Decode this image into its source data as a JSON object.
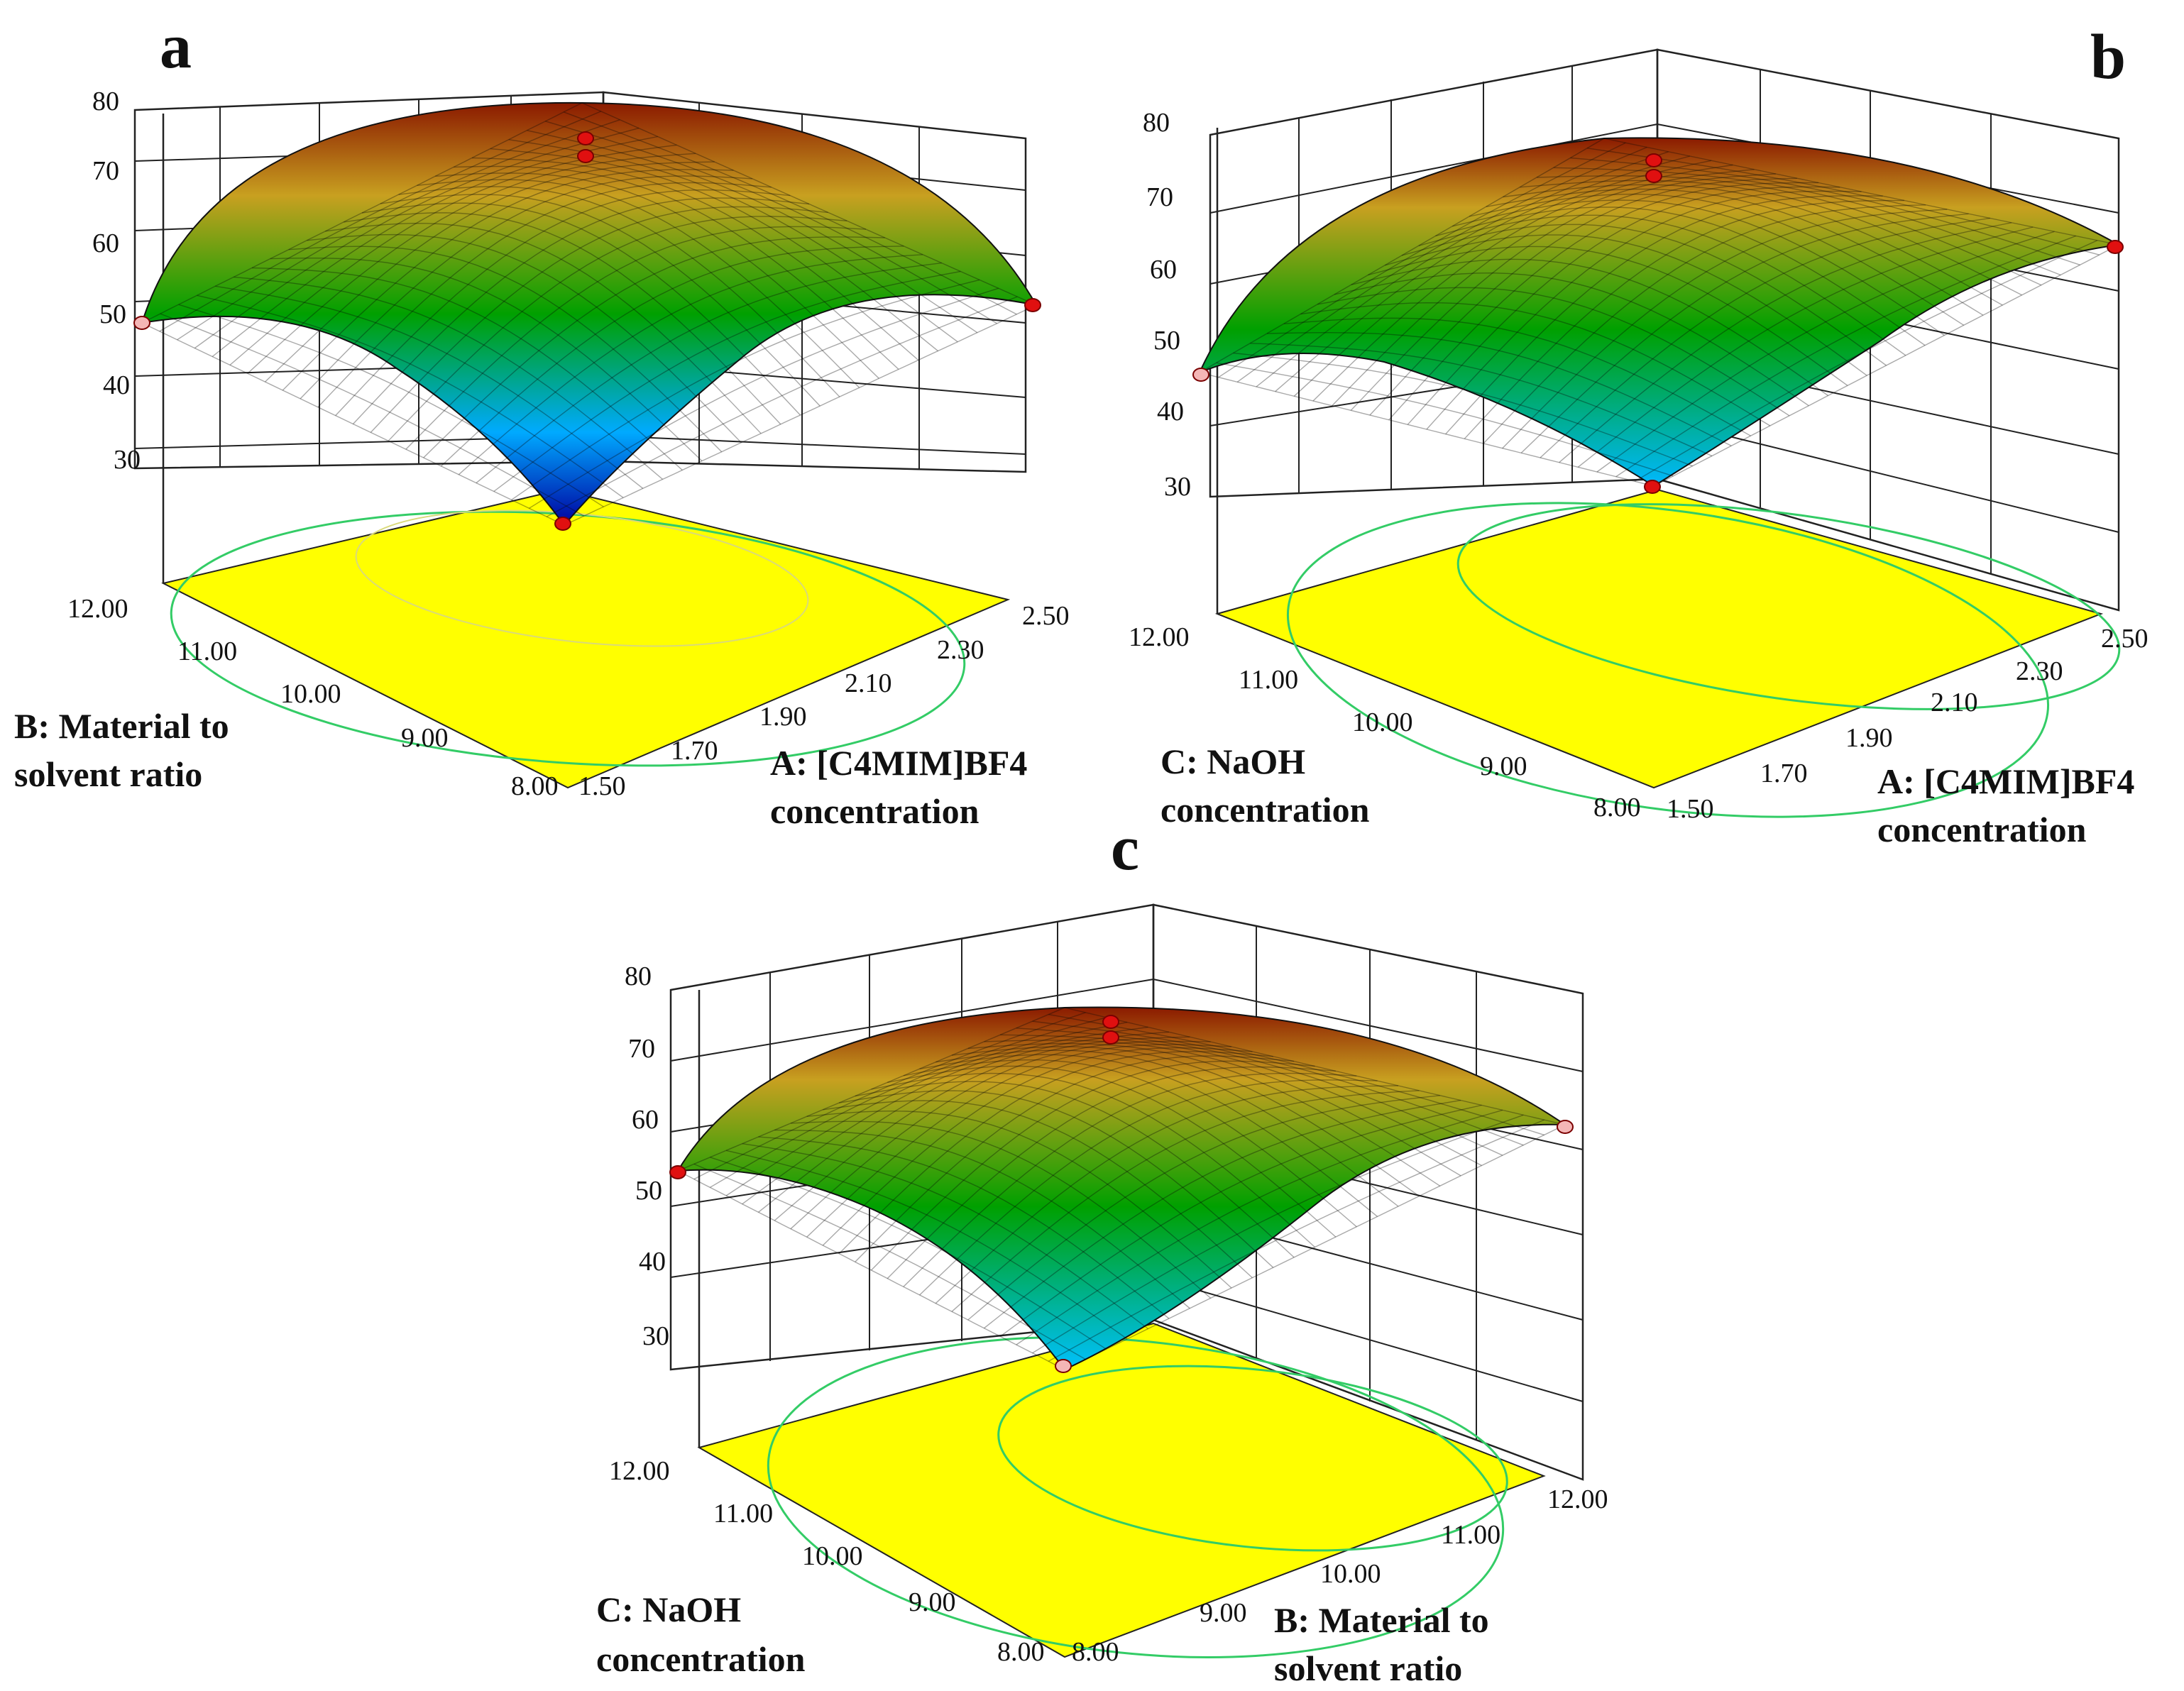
{
  "figure": {
    "description_type": "3D response surface plots with contour projections",
    "z_ticks": [
      "80",
      "70",
      "60",
      "50",
      "40",
      "30"
    ]
  },
  "chart_data": [
    {
      "type": "surface",
      "panel": "a",
      "zlim": [
        30,
        80
      ],
      "x_axis": {
        "label_line1": "A: [C4MIM]BF4",
        "label_line2": "concentration",
        "ticks": [
          "1.50",
          "1.70",
          "1.90",
          "2.10",
          "2.30",
          "2.50"
        ],
        "range": [
          1.5,
          2.5
        ]
      },
      "y_axis": {
        "label_line1": "B: Material to",
        "label_line2": "solvent ratio",
        "ticks": [
          "8.00",
          "9.00",
          "10.00",
          "11.00",
          "12.00"
        ],
        "range": [
          8,
          12
        ]
      },
      "z_ticks": [
        "30",
        "40",
        "50",
        "60",
        "70",
        "80"
      ],
      "surface_samples": {
        "front_corner": 28,
        "left_corner": 50,
        "right_corner": 50,
        "back_corner": 52,
        "peak": 73
      },
      "design_points": [
        {
          "x": 2.0,
          "y": 10.0,
          "z": 75,
          "color": "#e01010"
        },
        {
          "x": 2.0,
          "y": 10.0,
          "z": 73,
          "color": "#e01010"
        },
        {
          "x": 1.5,
          "y": 8.0,
          "z": 28,
          "color": "#e01010"
        },
        {
          "x": 1.5,
          "y": 12.0,
          "z": 49,
          "color": "#f4b6b6"
        },
        {
          "x": 2.5,
          "y": 8.0,
          "z": 50,
          "color": "#e01010"
        }
      ]
    },
    {
      "type": "surface",
      "panel": "b",
      "zlim": [
        30,
        80
      ],
      "x_axis": {
        "label_line1": "A: [C4MIM]BF4",
        "label_line2": "concentration",
        "ticks": [
          "1.50",
          "1.70",
          "1.90",
          "2.10",
          "2.30",
          "2.50"
        ],
        "range": [
          1.5,
          2.5
        ]
      },
      "y_axis": {
        "label_line1": "C: NaOH",
        "label_line2": "concentration",
        "ticks": [
          "8.00",
          "9.00",
          "10.00",
          "11.00",
          "12.00"
        ],
        "range": [
          8,
          12
        ]
      },
      "z_ticks": [
        "30",
        "40",
        "50",
        "60",
        "70",
        "80"
      ],
      "surface_samples": {
        "front_corner": 28,
        "left_corner": 46,
        "right_corner": 62,
        "back_corner": 58,
        "peak": 74
      },
      "design_points": [
        {
          "x": 2.0,
          "y": 10.0,
          "z": 75,
          "color": "#e01010"
        },
        {
          "x": 2.0,
          "y": 10.0,
          "z": 73,
          "color": "#e01010"
        },
        {
          "x": 1.5,
          "y": 8.0,
          "z": 28,
          "color": "#e01010"
        },
        {
          "x": 1.5,
          "y": 12.0,
          "z": 45,
          "color": "#f4b6b6"
        },
        {
          "x": 2.5,
          "y": 8.0,
          "z": 62,
          "color": "#e01010"
        }
      ]
    },
    {
      "type": "surface",
      "panel": "c",
      "zlim": [
        30,
        80
      ],
      "x_axis": {
        "label_line1": "B: Material to",
        "label_line2": "solvent ratio",
        "ticks": [
          "8.00",
          "9.00",
          "10.00",
          "11.00",
          "12.00"
        ],
        "range": [
          8,
          12
        ]
      },
      "y_axis": {
        "label_line1": "C: NaOH",
        "label_line2": "concentration",
        "ticks": [
          "8.00",
          "9.00",
          "10.00",
          "11.00",
          "12.00"
        ],
        "range": [
          8,
          12
        ]
      },
      "z_ticks": [
        "30",
        "40",
        "50",
        "60",
        "70",
        "80"
      ],
      "surface_samples": {
        "front_corner": 35,
        "left_corner": 51,
        "right_corner": 52,
        "back_corner": 55,
        "peak": 74
      },
      "design_points": [
        {
          "x": 10.0,
          "y": 10.0,
          "z": 75,
          "color": "#e01010"
        },
        {
          "x": 10.0,
          "y": 10.0,
          "z": 73,
          "color": "#e01010"
        },
        {
          "x": 8.0,
          "y": 8.0,
          "z": 34,
          "color": "#f4b6b6"
        },
        {
          "x": 8.0,
          "y": 12.0,
          "z": 51,
          "color": "#e01010"
        },
        {
          "x": 12.0,
          "y": 8.0,
          "z": 52,
          "color": "#f4b6b6"
        }
      ]
    }
  ]
}
